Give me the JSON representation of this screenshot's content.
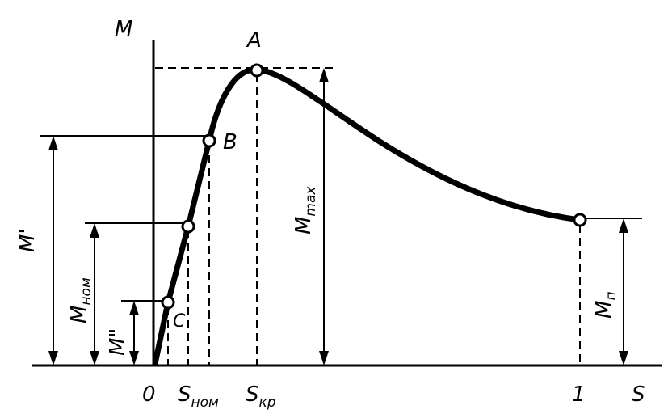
{
  "diagram": {
    "axes": {
      "y_label": "M",
      "x_label": "S",
      "origin_label": "0",
      "x_tick_one": "1"
    },
    "points": {
      "a": "A",
      "b": "B",
      "c": "C"
    },
    "x_ticks": {
      "s_nom_main": "S",
      "s_nom_sub": "ном",
      "s_kr_main": "S",
      "s_kr_sub": "кр"
    },
    "dimensions": {
      "m_prime": "M'",
      "m_nom_main": "M",
      "m_nom_sub": "ном",
      "m_double": "M\"",
      "m_max_main": "M",
      "m_max_sub": "max",
      "m_n_main": "M",
      "m_n_sub": "п"
    }
  }
}
